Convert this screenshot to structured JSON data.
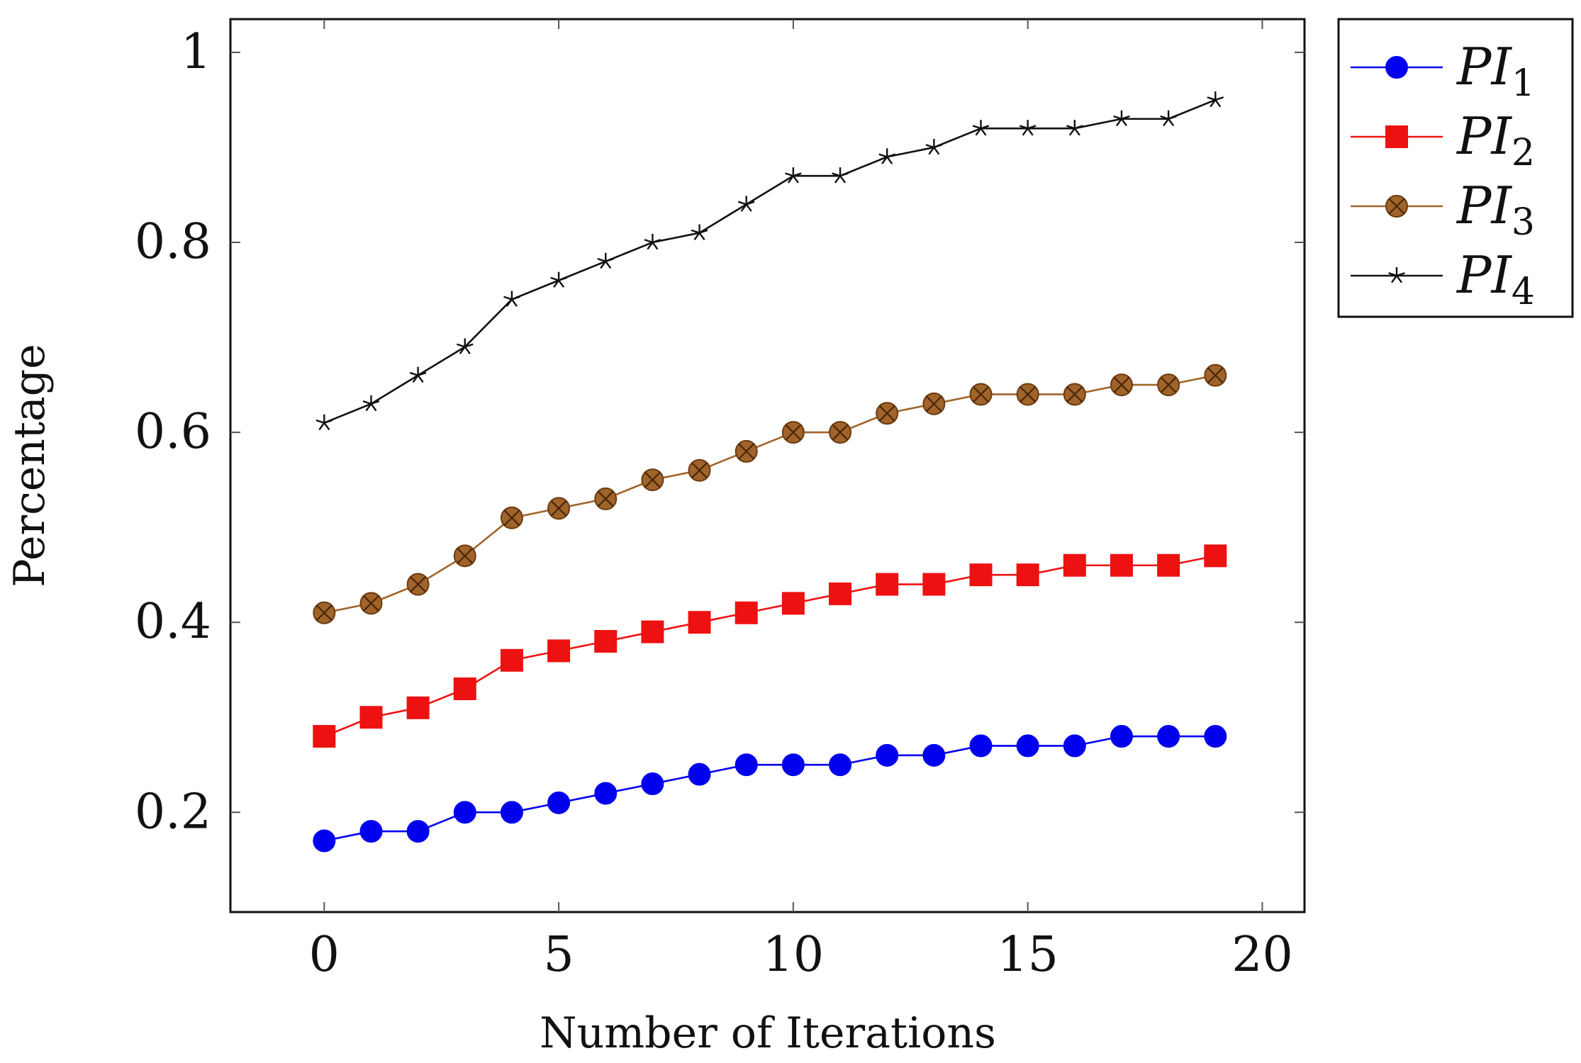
{
  "chart_data": {
    "type": "line",
    "title": "",
    "xlabel": "Number of Iterations",
    "ylabel": "Percentage",
    "xlim": [
      -2,
      20.9
    ],
    "ylim": [
      0.095,
      1.035
    ],
    "xticks": [
      0,
      5,
      10,
      15,
      20
    ],
    "yticks": [
      0.2,
      0.4,
      0.6,
      0.8,
      1
    ],
    "ytick_labels": [
      "0.2",
      "0.4",
      "0.6",
      "0.8",
      "1"
    ],
    "grid": false,
    "legend_position": "outside-top-right",
    "x": [
      0,
      1,
      2,
      3,
      4,
      5,
      6,
      7,
      8,
      9,
      10,
      11,
      12,
      13,
      14,
      15,
      16,
      17,
      18,
      19
    ],
    "series": [
      {
        "name": "PI1",
        "name_base": "PI",
        "name_sub": "1",
        "color": "#0000ee",
        "marker": "circle",
        "values": [
          0.17,
          0.18,
          0.18,
          0.2,
          0.2,
          0.21,
          0.22,
          0.23,
          0.24,
          0.25,
          0.25,
          0.25,
          0.26,
          0.26,
          0.27,
          0.27,
          0.27,
          0.28,
          0.28,
          0.28
        ]
      },
      {
        "name": "PI2",
        "name_base": "PI",
        "name_sub": "2",
        "color": "#ee1111",
        "marker": "square",
        "values": [
          0.28,
          0.3,
          0.31,
          0.33,
          0.36,
          0.37,
          0.38,
          0.39,
          0.4,
          0.41,
          0.42,
          0.43,
          0.44,
          0.44,
          0.45,
          0.45,
          0.46,
          0.46,
          0.46,
          0.47
        ]
      },
      {
        "name": "PI3",
        "name_base": "PI",
        "name_sub": "3",
        "color": "#a0642a",
        "marker": "otimes",
        "values": [
          0.41,
          0.42,
          0.44,
          0.47,
          0.51,
          0.52,
          0.53,
          0.55,
          0.56,
          0.58,
          0.6,
          0.6,
          0.62,
          0.63,
          0.64,
          0.64,
          0.64,
          0.65,
          0.65,
          0.66
        ]
      },
      {
        "name": "PI4",
        "name_base": "PI",
        "name_sub": "4",
        "color": "#111111",
        "marker": "star",
        "values": [
          0.61,
          0.63,
          0.66,
          0.69,
          0.74,
          0.76,
          0.78,
          0.8,
          0.81,
          0.84,
          0.87,
          0.87,
          0.89,
          0.9,
          0.92,
          0.92,
          0.92,
          0.93,
          0.93,
          0.95
        ]
      }
    ]
  }
}
